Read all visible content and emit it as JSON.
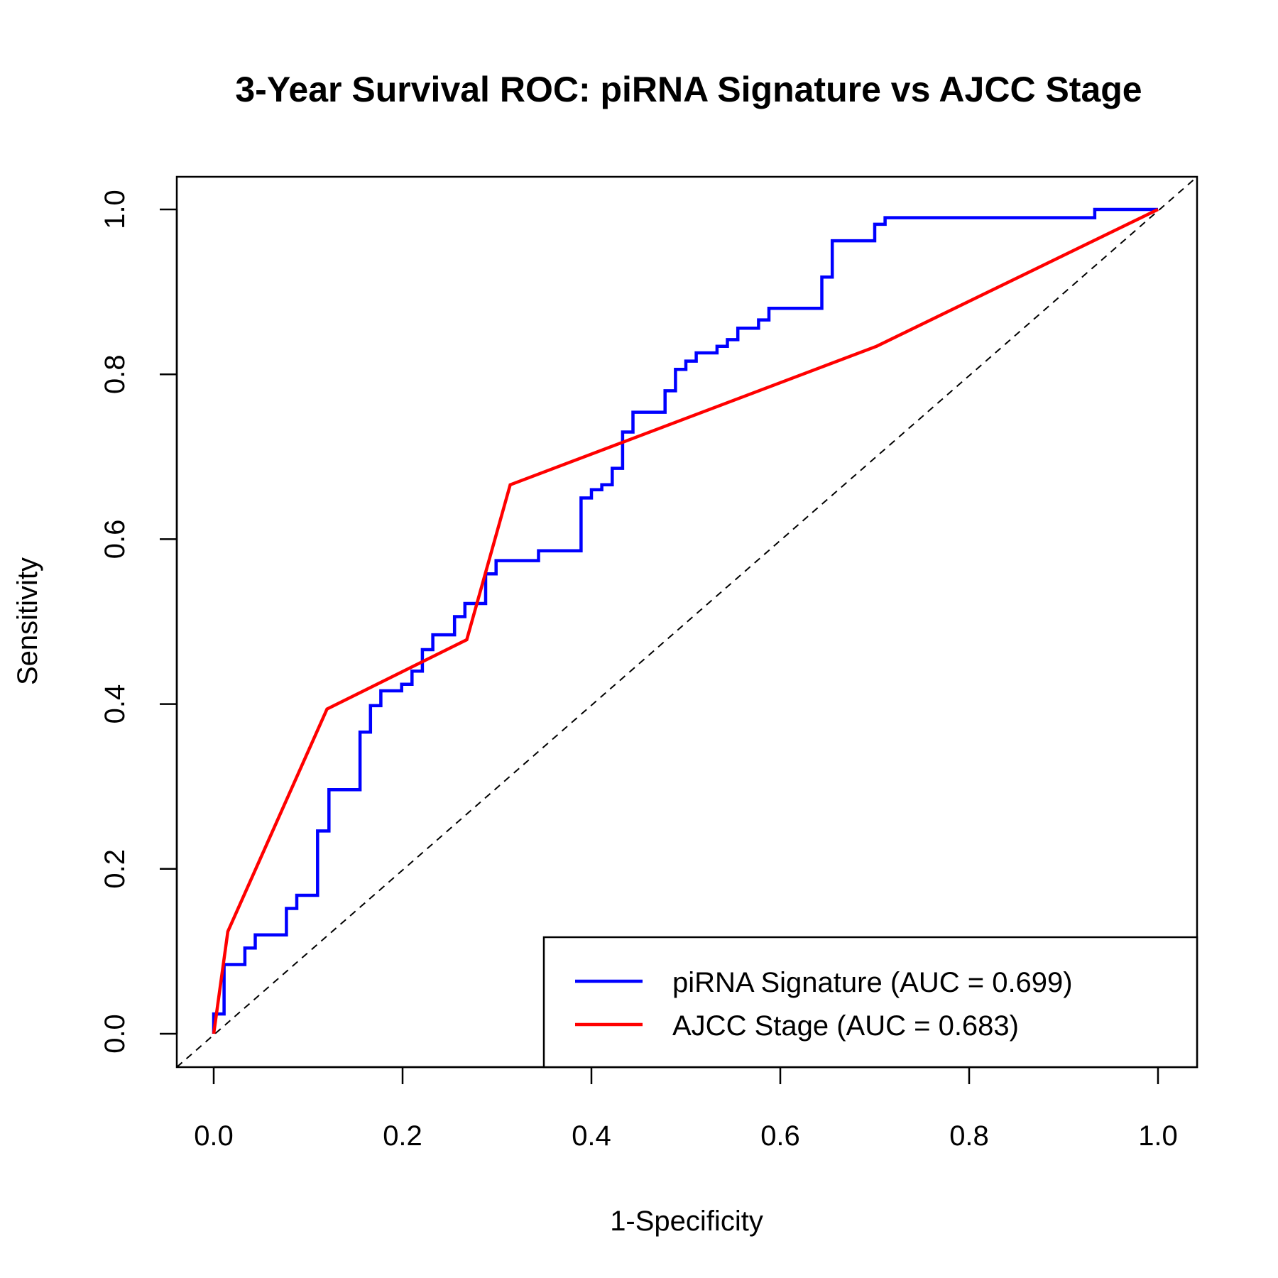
{
  "chart_data": {
    "type": "line",
    "title": "3-Year Survival ROC: piRNA Signature vs AJCC Stage",
    "xlabel": "1-Specificity",
    "ylabel": "Sensitivity",
    "xlim": [
      0,
      1
    ],
    "ylim": [
      0,
      1
    ],
    "xticks": [
      "0.0",
      "0.2",
      "0.4",
      "0.6",
      "0.8",
      "1.0"
    ],
    "yticks": [
      "0.0",
      "0.2",
      "0.4",
      "0.6",
      "0.8",
      "1.0"
    ],
    "grid": false,
    "legend_position": "bottom-right",
    "reference_line": {
      "style": "dashed",
      "color": "#000000",
      "from": [
        0,
        0
      ],
      "to": [
        1,
        1
      ]
    },
    "series": [
      {
        "name": "piRNA Signature (AUC = 0.699)",
        "color": "#0000FF",
        "points": [
          [
            0.0,
            0.0
          ],
          [
            0.0,
            0.024
          ],
          [
            0.011,
            0.024
          ],
          [
            0.011,
            0.084
          ],
          [
            0.033,
            0.084
          ],
          [
            0.033,
            0.104
          ],
          [
            0.044,
            0.104
          ],
          [
            0.044,
            0.12
          ],
          [
            0.077,
            0.12
          ],
          [
            0.077,
            0.152
          ],
          [
            0.088,
            0.152
          ],
          [
            0.088,
            0.168
          ],
          [
            0.11,
            0.168
          ],
          [
            0.11,
            0.246
          ],
          [
            0.122,
            0.246
          ],
          [
            0.122,
            0.296
          ],
          [
            0.155,
            0.296
          ],
          [
            0.155,
            0.366
          ],
          [
            0.166,
            0.366
          ],
          [
            0.166,
            0.398
          ],
          [
            0.177,
            0.398
          ],
          [
            0.177,
            0.416
          ],
          [
            0.199,
            0.416
          ],
          [
            0.199,
            0.424
          ],
          [
            0.21,
            0.424
          ],
          [
            0.21,
            0.44
          ],
          [
            0.221,
            0.44
          ],
          [
            0.221,
            0.466
          ],
          [
            0.232,
            0.466
          ],
          [
            0.232,
            0.484
          ],
          [
            0.255,
            0.484
          ],
          [
            0.255,
            0.506
          ],
          [
            0.266,
            0.506
          ],
          [
            0.266,
            0.522
          ],
          [
            0.288,
            0.522
          ],
          [
            0.288,
            0.558
          ],
          [
            0.299,
            0.558
          ],
          [
            0.299,
            0.574
          ],
          [
            0.344,
            0.574
          ],
          [
            0.344,
            0.586
          ],
          [
            0.389,
            0.586
          ],
          [
            0.389,
            0.65
          ],
          [
            0.4,
            0.65
          ],
          [
            0.4,
            0.66
          ],
          [
            0.411,
            0.66
          ],
          [
            0.411,
            0.666
          ],
          [
            0.422,
            0.666
          ],
          [
            0.422,
            0.686
          ],
          [
            0.433,
            0.686
          ],
          [
            0.433,
            0.73
          ],
          [
            0.444,
            0.73
          ],
          [
            0.444,
            0.754
          ],
          [
            0.478,
            0.754
          ],
          [
            0.478,
            0.78
          ],
          [
            0.489,
            0.78
          ],
          [
            0.489,
            0.806
          ],
          [
            0.5,
            0.806
          ],
          [
            0.5,
            0.816
          ],
          [
            0.511,
            0.816
          ],
          [
            0.511,
            0.826
          ],
          [
            0.533,
            0.826
          ],
          [
            0.533,
            0.834
          ],
          [
            0.544,
            0.834
          ],
          [
            0.544,
            0.842
          ],
          [
            0.555,
            0.842
          ],
          [
            0.555,
            0.856
          ],
          [
            0.577,
            0.856
          ],
          [
            0.577,
            0.866
          ],
          [
            0.588,
            0.866
          ],
          [
            0.588,
            0.88
          ],
          [
            0.644,
            0.88
          ],
          [
            0.644,
            0.918
          ],
          [
            0.655,
            0.918
          ],
          [
            0.655,
            0.962
          ],
          [
            0.7,
            0.962
          ],
          [
            0.7,
            0.982
          ],
          [
            0.711,
            0.982
          ],
          [
            0.711,
            0.99
          ],
          [
            0.933,
            0.99
          ],
          [
            0.933,
            1.0
          ],
          [
            1.0,
            1.0
          ]
        ]
      },
      {
        "name": "AJCC Stage (AUC = 0.683)",
        "color": "#FF0000",
        "points": [
          [
            0.0,
            0.0
          ],
          [
            0.015,
            0.124
          ],
          [
            0.12,
            0.394
          ],
          [
            0.268,
            0.478
          ],
          [
            0.314,
            0.666
          ],
          [
            0.702,
            0.834
          ],
          [
            1.0,
            1.0
          ]
        ]
      }
    ]
  }
}
